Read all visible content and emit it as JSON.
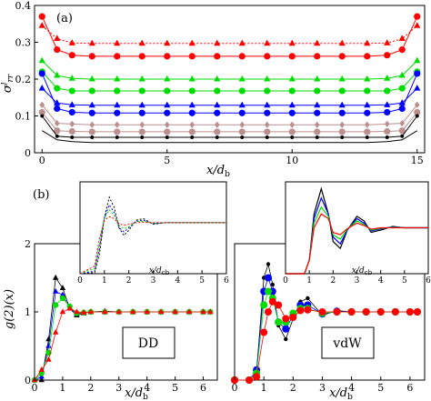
{
  "chart_data": [
    {
      "id": "a",
      "type": "line",
      "panel_label": "(a)",
      "xlabel": "x/d",
      "xlabel_sub": "b",
      "ylabel": "σ",
      "ylabel_sub": "rr",
      "ylabel_sup": "j",
      "xlim": [
        -0.3,
        15.3
      ],
      "ylim": [
        0,
        0.4
      ],
      "xticks": [
        "0",
        "5",
        "10",
        "15"
      ],
      "yticks": [
        "0",
        "0.1",
        "0.2",
        "0.3",
        "0.4"
      ],
      "x": [
        0,
        0.6,
        1.2,
        2,
        3,
        4,
        5,
        6,
        7,
        8,
        9,
        10,
        11,
        12,
        13,
        13.8,
        14.4,
        15
      ],
      "series": [
        {
          "color": "#ff0000",
          "marker": "circle",
          "dashed": false,
          "values": [
            0.37,
            0.28,
            0.265,
            0.262,
            0.262,
            0.262,
            0.262,
            0.262,
            0.262,
            0.262,
            0.262,
            0.262,
            0.262,
            0.262,
            0.262,
            0.265,
            0.28,
            0.37
          ]
        },
        {
          "color": "#ff0000",
          "marker": "triangle",
          "dashed": true,
          "values": [
            0.345,
            0.31,
            0.298,
            0.297,
            0.297,
            0.297,
            0.297,
            0.297,
            0.297,
            0.297,
            0.297,
            0.297,
            0.297,
            0.297,
            0.297,
            0.298,
            0.31,
            0.345
          ]
        },
        {
          "color": "#00dd00",
          "marker": "triangle",
          "dashed": false,
          "values": [
            0.25,
            0.21,
            0.202,
            0.2,
            0.2,
            0.2,
            0.2,
            0.2,
            0.2,
            0.2,
            0.2,
            0.2,
            0.2,
            0.2,
            0.2,
            0.202,
            0.21,
            0.25
          ]
        },
        {
          "color": "#00dd00",
          "marker": "circle",
          "dashed": false,
          "values": [
            0.22,
            0.175,
            0.168,
            0.168,
            0.168,
            0.168,
            0.168,
            0.168,
            0.168,
            0.168,
            0.168,
            0.168,
            0.168,
            0.168,
            0.168,
            0.168,
            0.175,
            0.22
          ]
        },
        {
          "color": "#0000ff",
          "marker": "triangle",
          "dashed": false,
          "values": [
            0.175,
            0.135,
            0.13,
            0.129,
            0.129,
            0.129,
            0.129,
            0.129,
            0.129,
            0.129,
            0.129,
            0.129,
            0.129,
            0.129,
            0.129,
            0.13,
            0.135,
            0.175
          ]
        },
        {
          "color": "#0000ff",
          "marker": "circle",
          "dashed": false,
          "values": [
            0.215,
            0.12,
            0.11,
            0.108,
            0.108,
            0.108,
            0.108,
            0.108,
            0.108,
            0.108,
            0.108,
            0.108,
            0.108,
            0.108,
            0.108,
            0.11,
            0.12,
            0.215
          ]
        },
        {
          "color": "#bc8f8f",
          "marker": "diamond",
          "dashed": false,
          "values": [
            0.13,
            0.08,
            0.078,
            0.076,
            0.076,
            0.076,
            0.076,
            0.076,
            0.076,
            0.076,
            0.076,
            0.076,
            0.076,
            0.076,
            0.076,
            0.078,
            0.08,
            0.13
          ]
        },
        {
          "color": "#bc8f8f",
          "marker": "circle",
          "dashed": false,
          "values": [
            0.11,
            0.06,
            0.058,
            0.057,
            0.057,
            0.057,
            0.057,
            0.057,
            0.057,
            0.057,
            0.057,
            0.057,
            0.057,
            0.057,
            0.057,
            0.058,
            0.06,
            0.11
          ]
        },
        {
          "color": "#000000",
          "marker": "dot",
          "dashed": false,
          "values": [
            0.1,
            0.045,
            0.042,
            0.042,
            0.042,
            0.042,
            0.042,
            0.042,
            0.042,
            0.042,
            0.042,
            0.042,
            0.042,
            0.042,
            0.042,
            0.042,
            0.045,
            0.1
          ]
        },
        {
          "color": "#000000",
          "marker": "none",
          "dashed": false,
          "values": [
            0.06,
            0.035,
            0.03,
            0.028,
            0.028,
            0.028,
            0.028,
            0.028,
            0.028,
            0.028,
            0.028,
            0.028,
            0.028,
            0.028,
            0.028,
            0.03,
            0.035,
            0.06
          ]
        }
      ]
    },
    {
      "id": "b-left",
      "type": "line",
      "panel_label": "(b)",
      "box_label": "DD",
      "xlabel": "x/d",
      "xlabel_sub": "b",
      "ylabel": "g(2)(x)",
      "xlim": [
        0,
        6.5
      ],
      "ylim": [
        0,
        2
      ],
      "xticks": [
        "0",
        "1",
        "2",
        "3",
        "4",
        "5",
        "6"
      ],
      "yticks": [
        "0",
        "1",
        "2"
      ],
      "x": [
        0,
        0.25,
        0.5,
        0.75,
        1,
        1.25,
        1.5,
        1.75,
        2,
        2.5,
        3,
        3.5,
        4,
        4.5,
        5,
        5.5,
        6,
        6.25
      ],
      "series": [
        {
          "color": "#000000",
          "marker": "triangle",
          "values": [
            0,
            0,
            0.6,
            1.5,
            1.35,
            1.05,
            0.95,
            0.98,
            1.0,
            1.01,
            1.0,
            1.0,
            1.0,
            1.0,
            1.0,
            1.0,
            1.0,
            1.0
          ]
        },
        {
          "color": "#0000ff",
          "marker": "triangle",
          "values": [
            0,
            0.05,
            0.5,
            1.3,
            1.25,
            1.05,
            0.97,
            0.99,
            1.0,
            1.0,
            1.0,
            1.0,
            1.0,
            1.0,
            1.0,
            1.0,
            1.0,
            1.0
          ]
        },
        {
          "color": "#00dd00",
          "marker": "circle",
          "values": [
            0,
            0.1,
            0.4,
            1.1,
            1.2,
            1.08,
            0.98,
            0.99,
            1.0,
            1.0,
            1.0,
            1.0,
            1.0,
            1.0,
            1.0,
            1.0,
            1.0,
            1.0
          ]
        },
        {
          "color": "#ff0000",
          "marker": "triangle",
          "values": [
            0,
            0.15,
            0.3,
            0.7,
            1.0,
            1.05,
            1.0,
            0.99,
            1.0,
            1.0,
            1.0,
            1.0,
            1.0,
            1.0,
            1.0,
            1.0,
            1.0,
            1.0
          ]
        }
      ]
    },
    {
      "id": "b-left-inset",
      "type": "line",
      "xlabel": "x/d",
      "xlabel_sub": "cb",
      "xlim": [
        0,
        6
      ],
      "ylim": [
        0,
        1.8
      ],
      "xticks": [
        "0",
        "1",
        "2",
        "3",
        "4",
        "5",
        "6"
      ],
      "x": [
        0,
        0.6,
        0.8,
        1.0,
        1.2,
        1.4,
        1.6,
        1.8,
        2.0,
        2.3,
        2.6,
        3.0,
        3.5,
        4,
        5,
        6
      ],
      "series": [
        {
          "color": "#000000",
          "dashed": true,
          "values": [
            0,
            0.02,
            0.4,
            1.1,
            1.5,
            1.3,
            0.9,
            0.75,
            0.85,
            1.05,
            1.08,
            0.97,
            1.0,
            1.0,
            1.0,
            1.0
          ]
        },
        {
          "color": "#0000ff",
          "dashed": true,
          "values": [
            0,
            0.05,
            0.5,
            1.1,
            1.35,
            1.2,
            0.9,
            0.82,
            0.9,
            1.03,
            1.05,
            0.98,
            1.0,
            1.0,
            1.0,
            1.0
          ]
        },
        {
          "color": "#00dd00",
          "dashed": true,
          "values": [
            0,
            0.1,
            0.6,
            1.1,
            1.25,
            1.15,
            0.95,
            0.88,
            0.92,
            1.02,
            1.03,
            0.99,
            1.0,
            1.0,
            1.0,
            1.0
          ]
        },
        {
          "color": "#ff0000",
          "dashed": true,
          "values": [
            0,
            0.15,
            0.7,
            1.05,
            1.12,
            1.08,
            0.98,
            0.95,
            0.97,
            1.0,
            1.01,
            1.0,
            1.0,
            1.0,
            1.0,
            1.0
          ]
        }
      ]
    },
    {
      "id": "b-right",
      "type": "line",
      "box_label": "vdW",
      "xlabel": "x/d",
      "xlabel_sub": "b",
      "xlim": [
        0,
        6.5
      ],
      "ylim": [
        0,
        2
      ],
      "xticks": [
        "0",
        "1",
        "2",
        "3",
        "4",
        "5",
        "6"
      ],
      "x": [
        0,
        0.5,
        0.75,
        1,
        1.15,
        1.3,
        1.5,
        1.75,
        2,
        2.25,
        2.5,
        3,
        3.5,
        4,
        4.5,
        5,
        5.5,
        6,
        6.25
      ],
      "series": [
        {
          "color": "#000000",
          "marker": "dot",
          "values": [
            0,
            0,
            0.1,
            1.5,
            1.7,
            1.4,
            0.8,
            0.6,
            0.9,
            1.15,
            1.2,
            0.95,
            1.02,
            1.0,
            1.0,
            1.0,
            1.0,
            1.0,
            1.0
          ]
        },
        {
          "color": "#0000ff",
          "marker": "circle",
          "values": [
            0,
            0,
            0.15,
            1.3,
            1.5,
            1.3,
            0.85,
            0.75,
            0.95,
            1.1,
            1.1,
            0.97,
            1.01,
            1.0,
            1.0,
            1.0,
            1.0,
            1.0,
            1.0
          ]
        },
        {
          "color": "#00dd00",
          "marker": "circle",
          "values": [
            0,
            0,
            0.1,
            1.1,
            1.3,
            1.2,
            0.85,
            0.85,
            0.98,
            1.05,
            1.05,
            0.98,
            1.0,
            1.0,
            1.0,
            1.0,
            1.0,
            1.0,
            1.0
          ]
        },
        {
          "color": "#ff0000",
          "marker": "circle",
          "values": [
            0,
            0,
            0.05,
            0.7,
            1.0,
            1.15,
            1.1,
            0.9,
            0.92,
            1.02,
            1.03,
            1.0,
            1.0,
            1.0,
            1.0,
            1.0,
            1.0,
            1.0,
            1.0
          ]
        }
      ]
    },
    {
      "id": "b-right-inset",
      "type": "line",
      "xlabel": "x/d",
      "xlabel_sub": "cb",
      "xlim": [
        0,
        6
      ],
      "ylim": [
        0,
        2
      ],
      "xticks": [
        "0",
        "1",
        "2",
        "3",
        "4",
        "5",
        "6"
      ],
      "x": [
        0,
        0.8,
        1.0,
        1.2,
        1.5,
        1.8,
        2.0,
        2.3,
        2.6,
        3.0,
        3.3,
        3.6,
        4.0,
        4.5,
        5,
        6
      ],
      "series": [
        {
          "color": "#000000",
          "values": [
            0,
            0,
            0.3,
            1.3,
            1.85,
            1.3,
            0.7,
            0.55,
            0.95,
            1.25,
            1.15,
            0.9,
            0.95,
            1.03,
            1.0,
            1.0
          ]
        },
        {
          "color": "#0000ff",
          "values": [
            0,
            0,
            0.3,
            1.2,
            1.65,
            1.3,
            0.8,
            0.65,
            0.95,
            1.2,
            1.1,
            0.93,
            0.98,
            1.02,
            1.0,
            1.0
          ]
        },
        {
          "color": "#00dd00",
          "values": [
            0,
            0,
            0.3,
            1.1,
            1.45,
            1.25,
            0.85,
            0.75,
            0.97,
            1.15,
            1.07,
            0.95,
            0.99,
            1.01,
            1.0,
            1.0
          ]
        },
        {
          "color": "#ff0000",
          "values": [
            0,
            0,
            0.3,
            1.0,
            1.3,
            1.2,
            0.9,
            0.85,
            0.98,
            1.1,
            1.05,
            0.97,
            1.0,
            1.0,
            1.0,
            1.0
          ]
        }
      ]
    }
  ]
}
